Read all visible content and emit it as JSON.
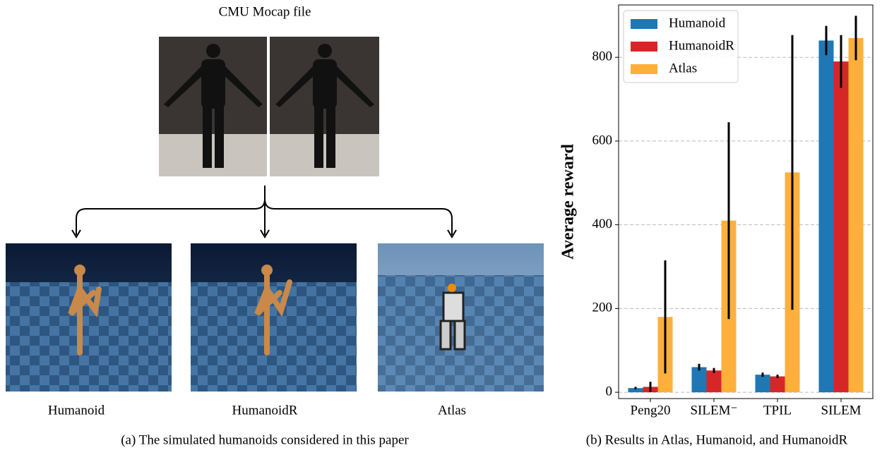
{
  "panel_a": {
    "title": "CMU Mocap file",
    "robots": [
      "Humanoid",
      "HumanoidR",
      "Atlas"
    ],
    "caption": "(a) The simulated humanoids considered in this paper"
  },
  "chart_data": {
    "type": "bar",
    "ylabel": "Average reward",
    "categories": [
      "Peng20",
      "SILEM⁻",
      "TPIL",
      "SILEM"
    ],
    "series": [
      {
        "name": "Humanoid",
        "color": "#1f77b4",
        "values": [
          10,
          60,
          42,
          840
        ],
        "errors": [
          3,
          8,
          5,
          35
        ]
      },
      {
        "name": "HumanoidR",
        "color": "#d62728",
        "values": [
          13,
          52,
          38,
          790
        ],
        "errors": [
          12,
          6,
          4,
          63
        ]
      },
      {
        "name": "Atlas",
        "color": "#ffb03b",
        "values": [
          180,
          410,
          525,
          846
        ],
        "errors": [
          135,
          235,
          328,
          53
        ]
      }
    ],
    "ylim": [
      -15,
      925
    ],
    "yticks": [
      0,
      200,
      400,
      600,
      800
    ],
    "grid": true,
    "legend": "upper left",
    "caption": "(b) Results in Atlas, Humanoid, and HumanoidR"
  }
}
